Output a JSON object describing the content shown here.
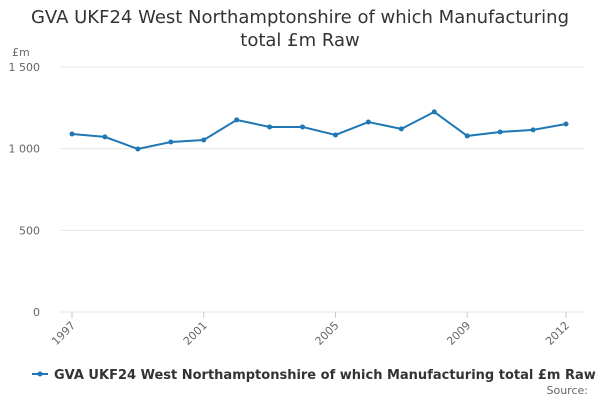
{
  "chart_data": {
    "type": "line",
    "title": "GVA UKF24 West Northamptonshire of which Manufacturing total £m Raw",
    "y_label": "£m",
    "x": [
      1997,
      1998,
      1999,
      2000,
      2001,
      2002,
      2003,
      2004,
      2005,
      2006,
      2007,
      2008,
      2009,
      2010,
      2011,
      2012
    ],
    "series": [
      {
        "name": "GVA UKF24 West Northamptonshire of which Manufacturing total £m Raw",
        "color": "#1f77b4",
        "values": [
          1090,
          1072,
          998,
          1041,
          1053,
          1176,
          1133,
          1133,
          1084,
          1163,
          1121,
          1225,
          1078,
          1102,
          1115,
          1151
        ]
      }
    ],
    "xlim": [
      1997,
      2012
    ],
    "xticks": [
      1997,
      2001,
      2005,
      2009,
      2012
    ],
    "ylim": [
      0,
      1500
    ],
    "yticks": [
      0,
      500,
      {
        "value": 1000,
        "label": "1 000"
      },
      {
        "value": 1500,
        "label": "1 500"
      }
    ],
    "grid": true,
    "source": "Source:"
  }
}
